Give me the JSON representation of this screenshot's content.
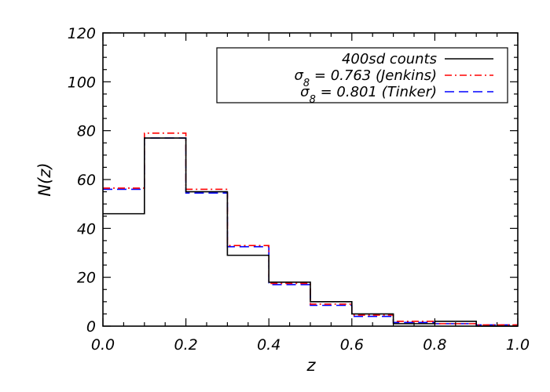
{
  "chart_data": {
    "type": "line",
    "step": true,
    "xlabel": "z",
    "ylabel": "N(z)",
    "xlim": [
      0.0,
      1.0
    ],
    "ylim": [
      0,
      120
    ],
    "x_ticks": [
      "0.0",
      "0.2",
      "0.4",
      "0.6",
      "0.8",
      "1.0"
    ],
    "y_ticks": [
      "0",
      "20",
      "40",
      "60",
      "80",
      "100",
      "120"
    ],
    "bin_edges": [
      0.0,
      0.1,
      0.2,
      0.3,
      0.4,
      0.5,
      0.6,
      0.7,
      0.8,
      0.9,
      1.0
    ],
    "legend_position": "top-right",
    "series": [
      {
        "name": "400sd counts",
        "values": [
          46,
          77,
          55,
          29,
          18,
          10,
          5,
          1,
          2,
          0
        ],
        "color": "#000000",
        "dash": "solid"
      },
      {
        "name_prefix": "σ",
        "name_sub": "8",
        "name_suffix": " = 0.763 (Jenkins)",
        "values": [
          56.5,
          79,
          56,
          33,
          17.5,
          9,
          4.5,
          2,
          1,
          0.5
        ],
        "color": "#ff0000",
        "dash": "dash-dot"
      },
      {
        "name_prefix": "σ",
        "name_sub": "8",
        "name_suffix": " = 0.801 (Tinker)",
        "values": [
          56,
          77,
          54.5,
          32.5,
          17,
          8.5,
          4,
          1.5,
          1,
          0.5
        ],
        "color": "#0000ff",
        "dash": "dashed"
      }
    ]
  }
}
